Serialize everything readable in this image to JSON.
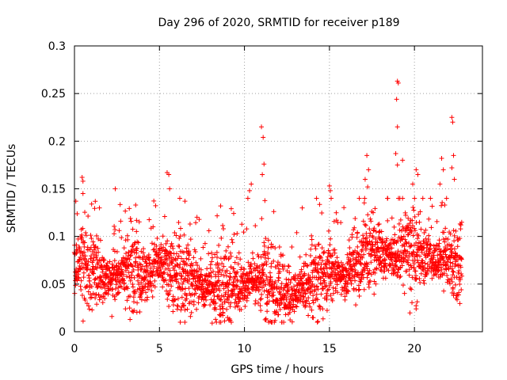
{
  "chart_data": {
    "type": "scatter",
    "title": "Day 296 of 2020, SRMTID for receiver p189",
    "xlabel": "GPS time / hours",
    "ylabel": "SRMTID / TECUs",
    "xlim": [
      0,
      24
    ],
    "ylim": [
      0,
      0.3
    ],
    "xticks": [
      0,
      5,
      10,
      15,
      20
    ],
    "yticks": [
      0,
      0.05,
      0.1,
      0.15,
      0.2,
      0.25,
      0.3
    ],
    "xtick_labels": [
      "0",
      "5",
      "10",
      "15",
      "20"
    ],
    "ytick_labels": [
      "0",
      "0.05",
      "0.1",
      "0.15",
      "0.2",
      "0.25",
      "0.3"
    ],
    "grid": true,
    "marker": "+",
    "color": "#ff0000",
    "x_data_range": [
      0,
      22.8
    ],
    "trend": [
      {
        "x": 0,
        "y": 0.07
      },
      {
        "x": 1,
        "y": 0.065
      },
      {
        "x": 2,
        "y": 0.055
      },
      {
        "x": 3,
        "y": 0.065
      },
      {
        "x": 4,
        "y": 0.055
      },
      {
        "x": 5,
        "y": 0.07
      },
      {
        "x": 6,
        "y": 0.06
      },
      {
        "x": 7,
        "y": 0.05
      },
      {
        "x": 8,
        "y": 0.045
      },
      {
        "x": 9,
        "y": 0.05
      },
      {
        "x": 10,
        "y": 0.05
      },
      {
        "x": 11,
        "y": 0.055
      },
      {
        "x": 12,
        "y": 0.04
      },
      {
        "x": 13,
        "y": 0.04
      },
      {
        "x": 14,
        "y": 0.055
      },
      {
        "x": 15,
        "y": 0.065
      },
      {
        "x": 16,
        "y": 0.06
      },
      {
        "x": 17,
        "y": 0.075
      },
      {
        "x": 18,
        "y": 0.08
      },
      {
        "x": 19,
        "y": 0.08
      },
      {
        "x": 20,
        "y": 0.085
      },
      {
        "x": 21,
        "y": 0.075
      },
      {
        "x": 22,
        "y": 0.075
      },
      {
        "x": 22.8,
        "y": 0.07
      }
    ],
    "outliers": [
      {
        "x": 0.45,
        "y": 0.162
      },
      {
        "x": 0.5,
        "y": 0.158
      },
      {
        "x": 0.5,
        "y": 0.145
      },
      {
        "x": 2.4,
        "y": 0.15
      },
      {
        "x": 3.6,
        "y": 0.133
      },
      {
        "x": 5.45,
        "y": 0.167
      },
      {
        "x": 5.55,
        "y": 0.165
      },
      {
        "x": 5.6,
        "y": 0.15
      },
      {
        "x": 6.5,
        "y": 0.137
      },
      {
        "x": 8.6,
        "y": 0.132
      },
      {
        "x": 10.4,
        "y": 0.155
      },
      {
        "x": 10.3,
        "y": 0.148
      },
      {
        "x": 10.2,
        "y": 0.14
      },
      {
        "x": 11.0,
        "y": 0.215
      },
      {
        "x": 11.1,
        "y": 0.204
      },
      {
        "x": 11.15,
        "y": 0.176
      },
      {
        "x": 11.05,
        "y": 0.165
      },
      {
        "x": 13.4,
        "y": 0.13
      },
      {
        "x": 15.0,
        "y": 0.153
      },
      {
        "x": 15.05,
        "y": 0.148
      },
      {
        "x": 15.1,
        "y": 0.14
      },
      {
        "x": 17.2,
        "y": 0.185
      },
      {
        "x": 17.3,
        "y": 0.17
      },
      {
        "x": 17.1,
        "y": 0.16
      },
      {
        "x": 17.25,
        "y": 0.152
      },
      {
        "x": 18.9,
        "y": 0.187
      },
      {
        "x": 19.0,
        "y": 0.175
      },
      {
        "x": 19.0,
        "y": 0.263
      },
      {
        "x": 19.05,
        "y": 0.261
      },
      {
        "x": 18.95,
        "y": 0.244
      },
      {
        "x": 19.0,
        "y": 0.215
      },
      {
        "x": 19.3,
        "y": 0.18
      },
      {
        "x": 20.1,
        "y": 0.17
      },
      {
        "x": 20.2,
        "y": 0.165
      },
      {
        "x": 19.9,
        "y": 0.155
      },
      {
        "x": 21.6,
        "y": 0.182
      },
      {
        "x": 21.7,
        "y": 0.17
      },
      {
        "x": 21.5,
        "y": 0.155
      },
      {
        "x": 22.2,
        "y": 0.225
      },
      {
        "x": 22.25,
        "y": 0.22
      },
      {
        "x": 22.3,
        "y": 0.185
      },
      {
        "x": 22.2,
        "y": 0.172
      },
      {
        "x": 22.35,
        "y": 0.16
      }
    ],
    "low_points": [
      {
        "x": 8.1,
        "y": 0.009
      },
      {
        "x": 8.3,
        "y": 0.013
      },
      {
        "x": 12.0,
        "y": 0.018
      },
      {
        "x": 2.2,
        "y": 0.016
      },
      {
        "x": 20.1,
        "y": 0.024
      },
      {
        "x": 14.0,
        "y": 0.015
      }
    ]
  }
}
